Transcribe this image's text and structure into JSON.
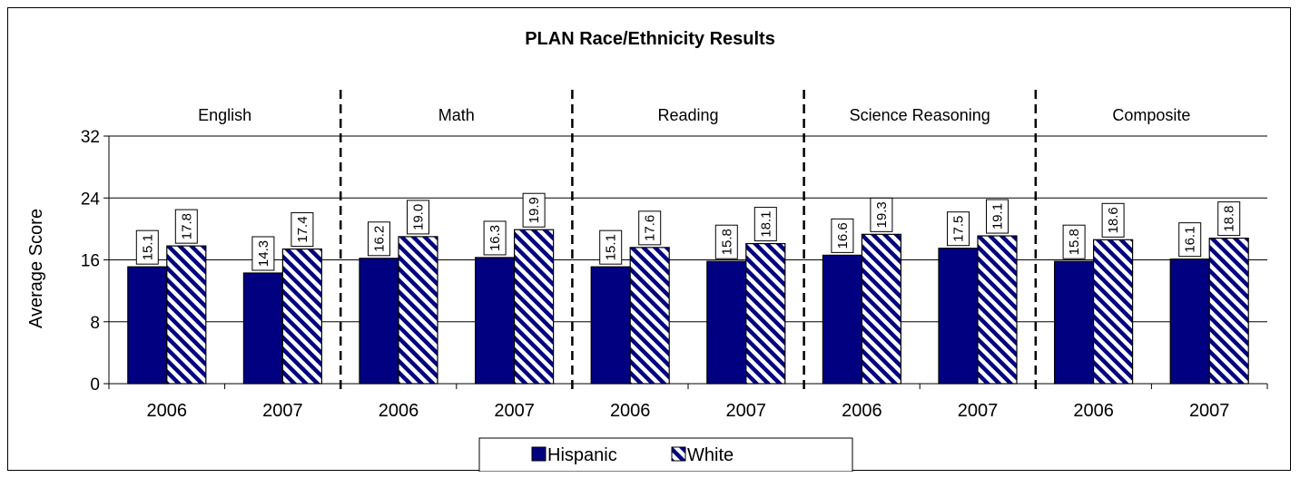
{
  "chart_data": {
    "type": "bar",
    "title": "PLAN Race/Ethnicity Results",
    "ylabel": "Average Score",
    "xlabel": "",
    "ylim": [
      0,
      32
    ],
    "yticks": [
      "0",
      "8",
      "16",
      "24",
      "32"
    ],
    "grid": "horizontal",
    "legend_position": "bottom",
    "groups": [
      "English",
      "Math",
      "Reading",
      "Science Reasoning",
      "Composite"
    ],
    "categories": [
      "2006",
      "2007",
      "2006",
      "2007",
      "2006",
      "2007",
      "2006",
      "2007",
      "2006",
      "2007"
    ],
    "series": [
      {
        "name": "Hispanic",
        "color": "#000080",
        "pattern": "solid",
        "values": [
          15.1,
          14.3,
          16.2,
          16.3,
          15.1,
          15.8,
          16.6,
          17.5,
          15.8,
          16.1
        ],
        "labels": [
          "15.1",
          "14.3",
          "16.2",
          "16.3",
          "15.1",
          "15.8",
          "16.6",
          "17.5",
          "15.8",
          "16.1"
        ]
      },
      {
        "name": "White",
        "color": "#000080",
        "pattern": "diagonal-stripes",
        "values": [
          17.8,
          17.4,
          19.0,
          19.9,
          17.6,
          18.1,
          19.3,
          19.1,
          18.6,
          18.8
        ],
        "labels": [
          "17.8",
          "17.4",
          "19.0",
          "19.9",
          "17.6",
          "18.1",
          "19.3",
          "19.1",
          "18.6",
          "18.8"
        ]
      }
    ]
  }
}
